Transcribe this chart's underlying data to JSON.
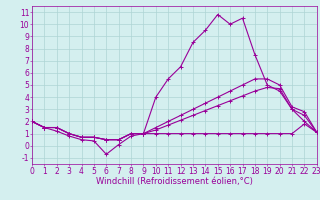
{
  "xlabel": "Windchill (Refroidissement éolien,°C)",
  "xlim": [
    0,
    23
  ],
  "ylim": [
    -1.5,
    11.5
  ],
  "yticks": [
    -1,
    0,
    1,
    2,
    3,
    4,
    5,
    6,
    7,
    8,
    9,
    10,
    11
  ],
  "xticks": [
    0,
    1,
    2,
    3,
    4,
    5,
    6,
    7,
    8,
    9,
    10,
    11,
    12,
    13,
    14,
    15,
    16,
    17,
    18,
    19,
    20,
    21,
    22,
    23
  ],
  "background_color": "#d4efef",
  "grid_color": "#aed4d4",
  "line_color": "#990099",
  "line1": [
    2.0,
    1.5,
    1.5,
    1.0,
    0.7,
    0.7,
    0.5,
    0.5,
    1.0,
    1.0,
    4.0,
    5.5,
    6.5,
    8.5,
    9.5,
    10.8,
    10.0,
    10.5,
    7.5,
    5.0,
    4.5,
    3.0,
    2.0,
    1.1
  ],
  "line2": [
    2.0,
    1.5,
    1.5,
    1.0,
    0.7,
    0.7,
    0.5,
    0.5,
    1.0,
    1.0,
    1.5,
    2.0,
    2.5,
    3.0,
    3.5,
    4.0,
    4.5,
    5.0,
    5.5,
    5.5,
    5.0,
    3.2,
    2.8,
    1.1
  ],
  "line3": [
    2.0,
    1.5,
    1.5,
    1.0,
    0.7,
    0.7,
    0.5,
    0.5,
    1.0,
    1.0,
    1.3,
    1.7,
    2.1,
    2.5,
    2.9,
    3.3,
    3.7,
    4.1,
    4.5,
    4.8,
    4.7,
    3.0,
    2.5,
    1.1
  ],
  "line4": [
    2.0,
    1.5,
    1.2,
    0.8,
    0.5,
    0.4,
    -0.7,
    0.1,
    0.8,
    1.0,
    1.0,
    1.0,
    1.0,
    1.0,
    1.0,
    1.0,
    1.0,
    1.0,
    1.0,
    1.0,
    1.0,
    1.0,
    1.8,
    1.1
  ],
  "tick_fontsize": 5.5,
  "xlabel_fontsize": 6.0,
  "linewidth": 0.8,
  "markersize": 2.5
}
